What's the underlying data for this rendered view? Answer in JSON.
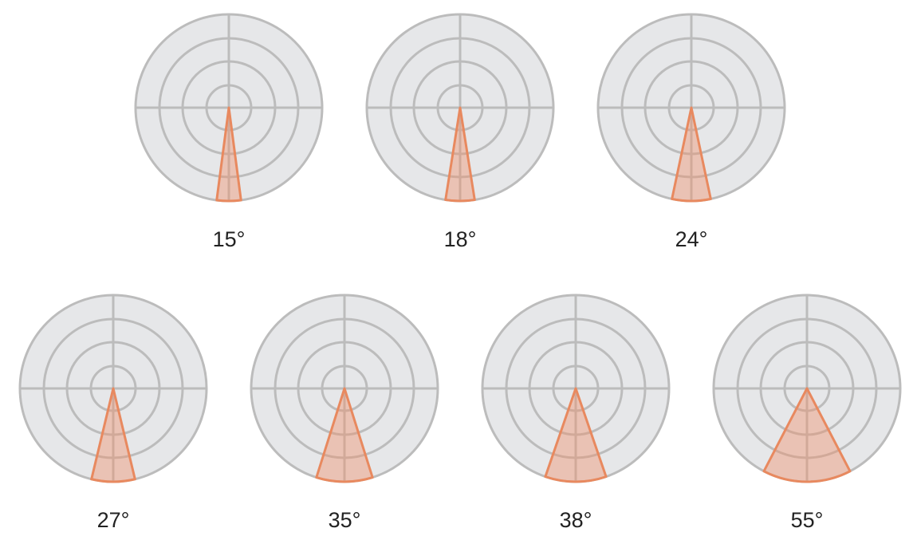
{
  "items": [
    {
      "angle": 15,
      "label": "15°"
    },
    {
      "angle": 18,
      "label": "18°"
    },
    {
      "angle": 24,
      "label": "24°"
    },
    {
      "angle": 27,
      "label": "27°"
    },
    {
      "angle": 35,
      "label": "35°"
    },
    {
      "angle": 38,
      "label": "38°"
    },
    {
      "angle": 55,
      "label": "55°"
    }
  ]
}
